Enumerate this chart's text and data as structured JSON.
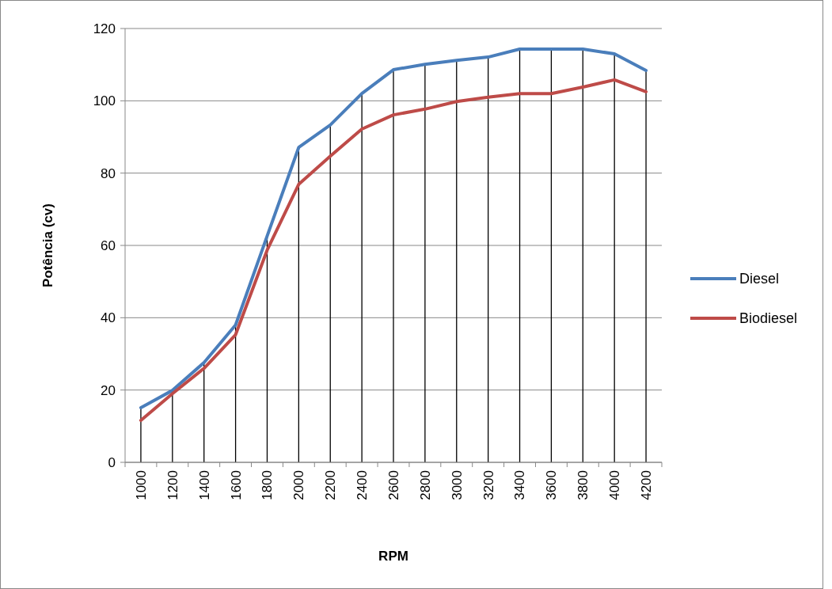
{
  "chart_data": {
    "type": "line",
    "xlabel": "RPM",
    "ylabel": "Potência (cv)",
    "categories": [
      "1000",
      "1200",
      "1400",
      "1600",
      "1800",
      "2000",
      "2200",
      "2400",
      "2600",
      "2800",
      "3000",
      "3200",
      "3400",
      "3600",
      "3800",
      "4000",
      "4200"
    ],
    "series": [
      {
        "name": "Diesel",
        "color": "#4a7ebb",
        "values": [
          15.1,
          19.9,
          27.6,
          38,
          62.6,
          87.1,
          93.3,
          102,
          108.6,
          110.1,
          111.2,
          112.1,
          114.3,
          114.3,
          114.3,
          113,
          108.4
        ]
      },
      {
        "name": "Biodiesel",
        "color": "#be4b48",
        "values": [
          11.6,
          19,
          26,
          35.3,
          58.7,
          76.9,
          84.7,
          92.2,
          96.1,
          97.7,
          99.8,
          101,
          102,
          102,
          103.8,
          105.8,
          102.5
        ]
      }
    ],
    "ylim": [
      0,
      120
    ],
    "yticks": [
      0,
      20,
      40,
      60,
      80,
      100,
      120
    ],
    "grid": true,
    "legend": "right",
    "marker": "none",
    "line_style": "solid"
  }
}
